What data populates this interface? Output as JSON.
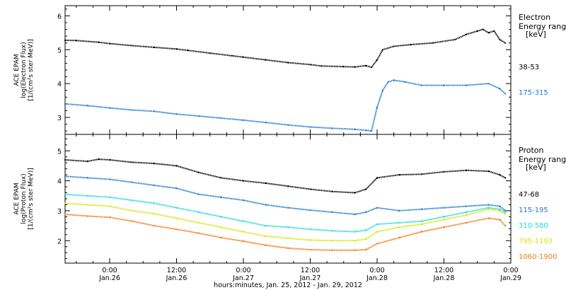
{
  "x_axis": {
    "title": "hours:minutes, Jan. 25, 2012 - Jan. 29, 2012",
    "ticks": [
      {
        "time": "0:00",
        "date": "Jan.26"
      },
      {
        "time": "12:00",
        "date": "Jan.26"
      },
      {
        "time": "0:00",
        "date": "Jan.27"
      },
      {
        "time": "12:00",
        "date": "Jan.27"
      },
      {
        "time": "0:00",
        "date": "Jan.28"
      },
      {
        "time": "12:00",
        "date": "Jan.28"
      },
      {
        "time": "0:00",
        "date": "Jan.29"
      }
    ]
  },
  "chart_data": [
    {
      "type": "scatter",
      "panel": "electron",
      "ylabel_lines": [
        "ACE EPAM",
        "log(Electron Flux)",
        "[1/(cm²s ster MeV)]"
      ],
      "legend_title_lines": [
        "Electron",
        "Energy range",
        "[keV]"
      ],
      "ylim": [
        2.5,
        6.3
      ],
      "yticks": [
        3,
        4,
        5,
        6
      ],
      "x_range_hours": [
        -8,
        72
      ],
      "series": [
        {
          "name": "38-53",
          "color": "#000000",
          "points": [
            [
              -8,
              5.28
            ],
            [
              -6,
              5.27
            ],
            [
              -2,
              5.22
            ],
            [
              0,
              5.18
            ],
            [
              4,
              5.12
            ],
            [
              8,
              5.07
            ],
            [
              12,
              5.02
            ],
            [
              14,
              4.98
            ],
            [
              18,
              4.9
            ],
            [
              22,
              4.82
            ],
            [
              24,
              4.78
            ],
            [
              28,
              4.7
            ],
            [
              32,
              4.62
            ],
            [
              36,
              4.56
            ],
            [
              38,
              4.52
            ],
            [
              42,
              4.5
            ],
            [
              44,
              4.49
            ],
            [
              46,
              4.53
            ],
            [
              47,
              4.48
            ],
            [
              48,
              4.7
            ],
            [
              49,
              5.0
            ],
            [
              51,
              5.1
            ],
            [
              54,
              5.15
            ],
            [
              58,
              5.2
            ],
            [
              62,
              5.3
            ],
            [
              64,
              5.45
            ],
            [
              66,
              5.55
            ],
            [
              67,
              5.6
            ],
            [
              68,
              5.5
            ],
            [
              69,
              5.55
            ],
            [
              70,
              5.3
            ],
            [
              71,
              5.2
            ]
          ]
        },
        {
          "name": "175-315",
          "color": "#1e78d2",
          "points": [
            [
              -8,
              3.4
            ],
            [
              -4,
              3.35
            ],
            [
              0,
              3.28
            ],
            [
              4,
              3.22
            ],
            [
              8,
              3.18
            ],
            [
              12,
              3.1
            ],
            [
              16,
              3.04
            ],
            [
              20,
              2.98
            ],
            [
              24,
              2.92
            ],
            [
              28,
              2.85
            ],
            [
              32,
              2.78
            ],
            [
              36,
              2.72
            ],
            [
              40,
              2.68
            ],
            [
              44,
              2.65
            ],
            [
              46,
              2.62
            ],
            [
              47,
              2.6
            ],
            [
              48,
              3.3
            ],
            [
              49,
              3.8
            ],
            [
              50,
              4.05
            ],
            [
              51,
              4.1
            ],
            [
              53,
              4.05
            ],
            [
              56,
              3.95
            ],
            [
              60,
              3.95
            ],
            [
              64,
              3.95
            ],
            [
              68,
              4.0
            ],
            [
              70,
              3.85
            ],
            [
              71,
              3.7
            ]
          ]
        }
      ]
    },
    {
      "type": "scatter",
      "panel": "proton",
      "ylabel_lines": [
        "ACE EPAM",
        "log(Proton Flux)",
        "[1/(cm²s ster MeV)]"
      ],
      "legend_title_lines": [
        "Proton",
        "Energy range",
        "[keV]"
      ],
      "ylim": [
        1.25,
        5.55
      ],
      "yticks": [
        2,
        3,
        4,
        5
      ],
      "x_range_hours": [
        -8,
        72
      ],
      "series": [
        {
          "name": "47-68",
          "color": "#000000",
          "points": [
            [
              -8,
              4.7
            ],
            [
              -4,
              4.65
            ],
            [
              -2,
              4.72
            ],
            [
              0,
              4.7
            ],
            [
              4,
              4.62
            ],
            [
              8,
              4.58
            ],
            [
              12,
              4.5
            ],
            [
              16,
              4.28
            ],
            [
              20,
              4.1
            ],
            [
              24,
              4.0
            ],
            [
              28,
              3.92
            ],
            [
              32,
              3.82
            ],
            [
              36,
              3.72
            ],
            [
              40,
              3.64
            ],
            [
              44,
              3.6
            ],
            [
              46,
              3.72
            ],
            [
              48,
              4.1
            ],
            [
              52,
              4.2
            ],
            [
              56,
              4.22
            ],
            [
              60,
              4.3
            ],
            [
              64,
              4.35
            ],
            [
              68,
              4.32
            ],
            [
              70,
              4.2
            ],
            [
              71,
              4.1
            ]
          ]
        },
        {
          "name": "115-195",
          "color": "#1e78d2",
          "points": [
            [
              -8,
              4.15
            ],
            [
              -4,
              4.1
            ],
            [
              0,
              4.05
            ],
            [
              4,
              3.95
            ],
            [
              8,
              3.85
            ],
            [
              12,
              3.75
            ],
            [
              16,
              3.55
            ],
            [
              20,
              3.45
            ],
            [
              24,
              3.35
            ],
            [
              28,
              3.2
            ],
            [
              32,
              3.1
            ],
            [
              36,
              3.02
            ],
            [
              40,
              2.95
            ],
            [
              44,
              2.88
            ],
            [
              46,
              2.95
            ],
            [
              48,
              3.1
            ],
            [
              52,
              3.0
            ],
            [
              56,
              3.05
            ],
            [
              60,
              3.1
            ],
            [
              64,
              3.15
            ],
            [
              68,
              3.2
            ],
            [
              70,
              3.15
            ],
            [
              71,
              3.0
            ]
          ]
        },
        {
          "name": "310-580",
          "color": "#20d8d8",
          "points": [
            [
              -8,
              3.55
            ],
            [
              -4,
              3.5
            ],
            [
              0,
              3.45
            ],
            [
              4,
              3.35
            ],
            [
              8,
              3.25
            ],
            [
              12,
              3.1
            ],
            [
              16,
              2.95
            ],
            [
              20,
              2.8
            ],
            [
              24,
              2.65
            ],
            [
              28,
              2.5
            ],
            [
              32,
              2.45
            ],
            [
              36,
              2.38
            ],
            [
              40,
              2.33
            ],
            [
              44,
              2.3
            ],
            [
              46,
              2.35
            ],
            [
              48,
              2.55
            ],
            [
              52,
              2.6
            ],
            [
              56,
              2.65
            ],
            [
              60,
              2.8
            ],
            [
              64,
              2.95
            ],
            [
              68,
              3.1
            ],
            [
              70,
              3.05
            ],
            [
              71,
              2.95
            ]
          ]
        },
        {
          "name": "795-1193",
          "color": "#d8e600",
          "points": [
            [
              -8,
              3.25
            ],
            [
              -4,
              3.2
            ],
            [
              0,
              3.15
            ],
            [
              4,
              3.0
            ],
            [
              8,
              2.9
            ],
            [
              12,
              2.75
            ],
            [
              16,
              2.6
            ],
            [
              20,
              2.45
            ],
            [
              24,
              2.3
            ],
            [
              28,
              2.15
            ],
            [
              32,
              2.08
            ],
            [
              36,
              2.02
            ],
            [
              40,
              2.0
            ],
            [
              44,
              2.0
            ],
            [
              46,
              2.05
            ],
            [
              48,
              2.3
            ],
            [
              52,
              2.45
            ],
            [
              56,
              2.55
            ],
            [
              60,
              2.7
            ],
            [
              64,
              2.85
            ],
            [
              68,
              3.05
            ],
            [
              70,
              3.0
            ],
            [
              71,
              2.9
            ]
          ]
        },
        {
          "name": "1060-1900",
          "color": "#f07814",
          "points": [
            [
              -8,
              2.88
            ],
            [
              -4,
              2.82
            ],
            [
              0,
              2.78
            ],
            [
              4,
              2.65
            ],
            [
              8,
              2.5
            ],
            [
              12,
              2.38
            ],
            [
              16,
              2.25
            ],
            [
              20,
              2.1
            ],
            [
              24,
              1.98
            ],
            [
              28,
              1.85
            ],
            [
              32,
              1.75
            ],
            [
              36,
              1.7
            ],
            [
              40,
              1.68
            ],
            [
              44,
              1.68
            ],
            [
              46,
              1.7
            ],
            [
              48,
              1.9
            ],
            [
              52,
              2.1
            ],
            [
              56,
              2.3
            ],
            [
              60,
              2.45
            ],
            [
              64,
              2.6
            ],
            [
              68,
              2.75
            ],
            [
              70,
              2.7
            ],
            [
              71,
              2.5
            ]
          ]
        }
      ]
    }
  ]
}
